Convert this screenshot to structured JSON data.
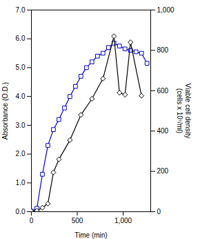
{
  "chart_data": {
    "type": "line",
    "xlabel": "Time (min)",
    "ylabel": "Absorbance (O.D.)",
    "y2label": "Viable cell density\n(cells x 10⁷/ml)",
    "xlim": [
      0,
      1300
    ],
    "xticks": [
      0,
      500,
      1000
    ],
    "ylim": [
      0,
      7
    ],
    "yticks": [
      0,
      1,
      2,
      3,
      4,
      5,
      6,
      7
    ],
    "y2lim": [
      0,
      1000
    ],
    "y2ticks": [
      0,
      200,
      400,
      600,
      800,
      1000
    ],
    "grid": false,
    "series": [
      {
        "axis": "y",
        "color": "#0000cc",
        "marker": "square",
        "line_style": "solid",
        "x": [
          0,
          60,
          120,
          180,
          240,
          300,
          360,
          420,
          480,
          540,
          600,
          660,
          720,
          780,
          840,
          900,
          960,
          1020,
          1080,
          1140,
          1200,
          1260
        ],
        "values": [
          0.02,
          0.12,
          1.3,
          2.3,
          2.85,
          3.2,
          3.6,
          4.0,
          4.35,
          4.7,
          5.0,
          5.2,
          5.4,
          5.5,
          5.7,
          5.85,
          5.75,
          5.65,
          5.6,
          5.55,
          5.5,
          5.15
        ]
      },
      {
        "axis": "y2",
        "color": "#000000",
        "marker": "diamond",
        "line_style": "solid",
        "x": [
          0,
          60,
          120,
          180,
          240,
          300,
          420,
          540,
          660,
          780,
          900,
          960,
          1020,
          1080,
          1200
        ],
        "values": [
          2,
          5,
          20,
          40,
          195,
          260,
          355,
          480,
          560,
          660,
          870,
          590,
          580,
          840,
          575
        ]
      }
    ]
  }
}
